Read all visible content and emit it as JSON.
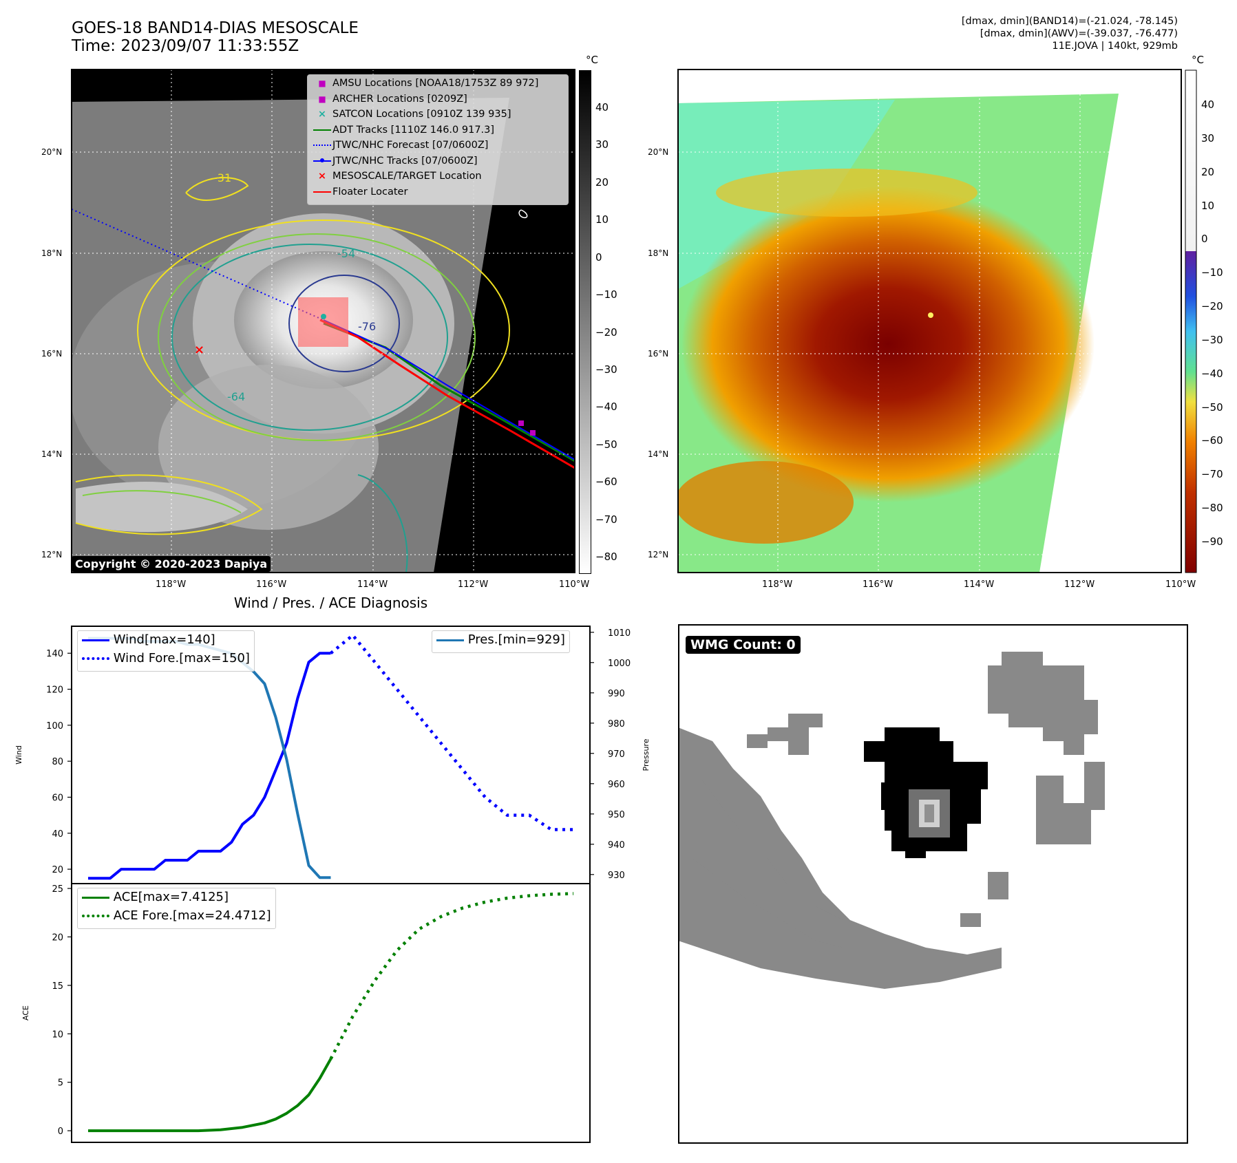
{
  "header": {
    "title_line1": "GOES-18 BAND14-DIAS MESOSCALE",
    "title_line2": "Time: 2023/09/07 11:33:55Z",
    "info_line1": "[dmax, dmin](BAND14)=(-21.024, -78.145)",
    "info_line2": "[dmax, dmin](AWV)=(-39.037, -76.477)",
    "info_line3": "11E.JOVA | 140kt, 929mb"
  },
  "map": {
    "lon_ticks": [
      "118°W",
      "116°W",
      "114°W",
      "112°W",
      "110°W"
    ],
    "lat_ticks": [
      "20°N",
      "18°N",
      "16°N",
      "14°N",
      "12°N"
    ],
    "copyright": "Copyright © 2020-2023 Dapiya",
    "contour_labels": [
      "-31",
      "-54",
      "-64",
      "-76"
    ],
    "legend": [
      {
        "label": "AMSU Locations [NOAA18/1753Z 89 972]",
        "color": "#c000c0"
      },
      {
        "label": "ARCHER Locations [0209Z]",
        "color": "#c000c0"
      },
      {
        "label": "SATCON Locations [0910Z 139 935]",
        "color": "#20b0a0"
      },
      {
        "label": "ADT Tracks [1110Z 146.0 917.3]",
        "color": "#008000"
      },
      {
        "label": "JTWC/NHC Forecast [07/0600Z]",
        "color": "#0000ff"
      },
      {
        "label": "JTWC/NHC Tracks [07/0600Z]",
        "color": "#0000ff"
      },
      {
        "label": "MESOSCALE/TARGET Location",
        "color": "#ff0000"
      },
      {
        "label": "Floater Locater",
        "color": "#ff0000"
      }
    ]
  },
  "colorbar_gray": {
    "unit": "°C",
    "ticks": [
      "40",
      "30",
      "20",
      "10",
      "0",
      "−10",
      "−20",
      "−30",
      "−40",
      "−50",
      "−60",
      "−70",
      "−80"
    ]
  },
  "colorbar_color": {
    "unit": "°C",
    "ticks": [
      "40",
      "30",
      "20",
      "10",
      "0",
      "−10",
      "−20",
      "−30",
      "−40",
      "−50",
      "−60",
      "−70",
      "−80",
      "−90"
    ]
  },
  "wmg": {
    "label": "WMG Count: 0"
  },
  "chart_data": [
    {
      "type": "line",
      "title": "Wind / Pres. / ACE Diagnosis",
      "ylabel": "Wind",
      "y2label": "Pressure",
      "ylim": [
        12,
        155
      ],
      "y2lim": [
        927,
        1012
      ],
      "yticks": [
        20,
        40,
        60,
        80,
        100,
        120,
        140
      ],
      "y2ticks": [
        930,
        940,
        950,
        960,
        970,
        980,
        990,
        1000,
        1010
      ],
      "series": [
        {
          "name": "Wind[max=140]",
          "color": "#0000ff",
          "style": "solid",
          "x": [
            0,
            1,
            2,
            3,
            4,
            5,
            6,
            7,
            8,
            9,
            10,
            11,
            12,
            13,
            14,
            15,
            16,
            17,
            18,
            19,
            20,
            21,
            22
          ],
          "values": [
            15,
            15,
            15,
            20,
            20,
            20,
            20,
            25,
            25,
            25,
            30,
            30,
            30,
            35,
            45,
            50,
            60,
            75,
            90,
            115,
            135,
            140,
            140
          ]
        },
        {
          "name": "Wind Fore.[max=150]",
          "color": "#0000ff",
          "style": "dotted",
          "x": [
            22,
            24,
            26,
            28,
            30,
            32,
            34,
            36,
            38,
            40,
            42,
            44
          ],
          "values": [
            140,
            150,
            135,
            120,
            105,
            90,
            75,
            60,
            50,
            50,
            42,
            42
          ]
        },
        {
          "name": "Pres.[min=929]",
          "color": "#1f77b4",
          "style": "solid",
          "axis": "right",
          "x": [
            0,
            1,
            2,
            3,
            4,
            5,
            6,
            7,
            8,
            9,
            10,
            11,
            12,
            13,
            14,
            15,
            16,
            17,
            18,
            19,
            20,
            21,
            22
          ],
          "values": [
            1008,
            1008,
            1008,
            1008,
            1008,
            1007,
            1007,
            1007,
            1007,
            1006,
            1006,
            1005,
            1004,
            1003,
            1000,
            997,
            993,
            982,
            968,
            950,
            933,
            929,
            929
          ]
        }
      ]
    },
    {
      "type": "line",
      "ylabel": "ACE",
      "ylim": [
        -1.2,
        25.5
      ],
      "yticks": [
        0,
        5,
        10,
        15,
        20,
        25
      ],
      "series": [
        {
          "name": "ACE[max=7.4125]",
          "color": "#008000",
          "style": "solid",
          "x": [
            0,
            4,
            8,
            10,
            12,
            14,
            16,
            17,
            18,
            19,
            20,
            21,
            22
          ],
          "values": [
            0,
            0,
            0,
            0,
            0.1,
            0.35,
            0.8,
            1.2,
            1.8,
            2.6,
            3.7,
            5.4,
            7.4125
          ]
        },
        {
          "name": "ACE Fore.[max=24.4712]",
          "color": "#008000",
          "style": "dotted",
          "x": [
            22,
            24,
            26,
            28,
            30,
            32,
            34,
            36,
            38,
            40,
            42,
            44
          ],
          "values": [
            7.4125,
            11.8,
            15.5,
            18.6,
            20.8,
            22.1,
            23.0,
            23.6,
            24.0,
            24.25,
            24.4,
            24.4712
          ]
        }
      ]
    }
  ]
}
